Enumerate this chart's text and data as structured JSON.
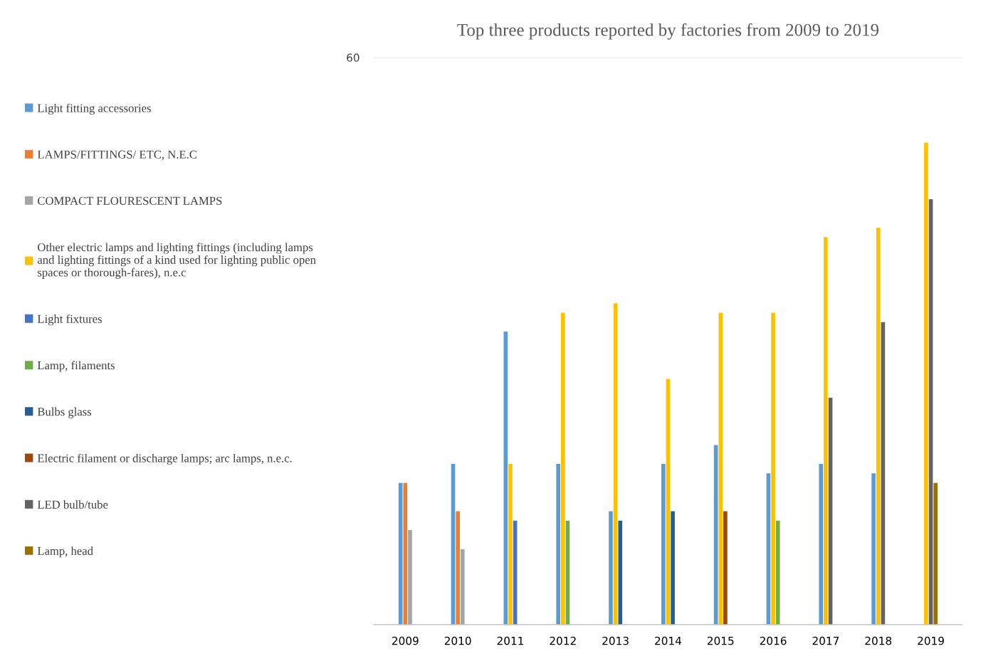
{
  "chart_data": {
    "type": "bar",
    "title": "Top three products reported by factories from 2009 to 2019",
    "legend": "left",
    "grid": "y",
    "ylim": [
      0,
      60
    ],
    "yticks": [
      {
        "value": 0,
        "label": null
      },
      60
    ],
    "categories": [
      "2009",
      "2010",
      "2011",
      "2012",
      "2013",
      "2014",
      "2015",
      "2016",
      "2017",
      "2018",
      "2019"
    ],
    "series": [
      {
        "name": "Light fitting accessories",
        "color": "#5b9bd5",
        "values": [
          15,
          17,
          31,
          17,
          12,
          17,
          19,
          16,
          17,
          16,
          null
        ]
      },
      {
        "name": "LAMPS/FITTINGS/ ETC, N.E.C",
        "color": "#ed7d31",
        "values": [
          15,
          12,
          null,
          null,
          null,
          null,
          null,
          null,
          null,
          null,
          null
        ]
      },
      {
        "name": "COMPACT FLOURESCENT LAMPS",
        "color": "#a5a5a5",
        "values": [
          10,
          8,
          null,
          null,
          null,
          null,
          null,
          null,
          null,
          null,
          null
        ]
      },
      {
        "name": "Other electric lamps and lighting fittings (including lamps\nand lighting fittings of a kind used for lighting public open\nspaces or thorough-fares), n.e.c",
        "color": "#ffc000",
        "values": [
          null,
          null,
          17,
          33,
          34,
          26,
          33,
          33,
          41,
          42,
          51
        ]
      },
      {
        "name": "Light fixtures",
        "color": "#4472c4",
        "values": [
          null,
          null,
          11,
          null,
          null,
          null,
          null,
          null,
          null,
          null,
          null
        ]
      },
      {
        "name": "Lamp, filaments",
        "color": "#70ad47",
        "values": [
          null,
          null,
          null,
          11,
          null,
          null,
          null,
          11,
          null,
          null,
          null
        ]
      },
      {
        "name": "Bulbs glass",
        "color": "#255e91",
        "values": [
          null,
          null,
          null,
          null,
          11,
          12,
          null,
          null,
          null,
          null,
          null
        ]
      },
      {
        "name": "Electric filament or discharge lamps; arc lamps, n.e.c.",
        "color": "#9e480e",
        "values": [
          null,
          null,
          null,
          null,
          null,
          null,
          12,
          null,
          null,
          null,
          null
        ]
      },
      {
        "name": "LED bulb/tube",
        "color": "#636363",
        "values": [
          null,
          null,
          null,
          null,
          null,
          null,
          null,
          null,
          24,
          32,
          45
        ]
      },
      {
        "name": "Lamp, head",
        "color": "#997300",
        "values": [
          null,
          null,
          null,
          null,
          null,
          null,
          null,
          null,
          null,
          null,
          15
        ]
      }
    ]
  }
}
